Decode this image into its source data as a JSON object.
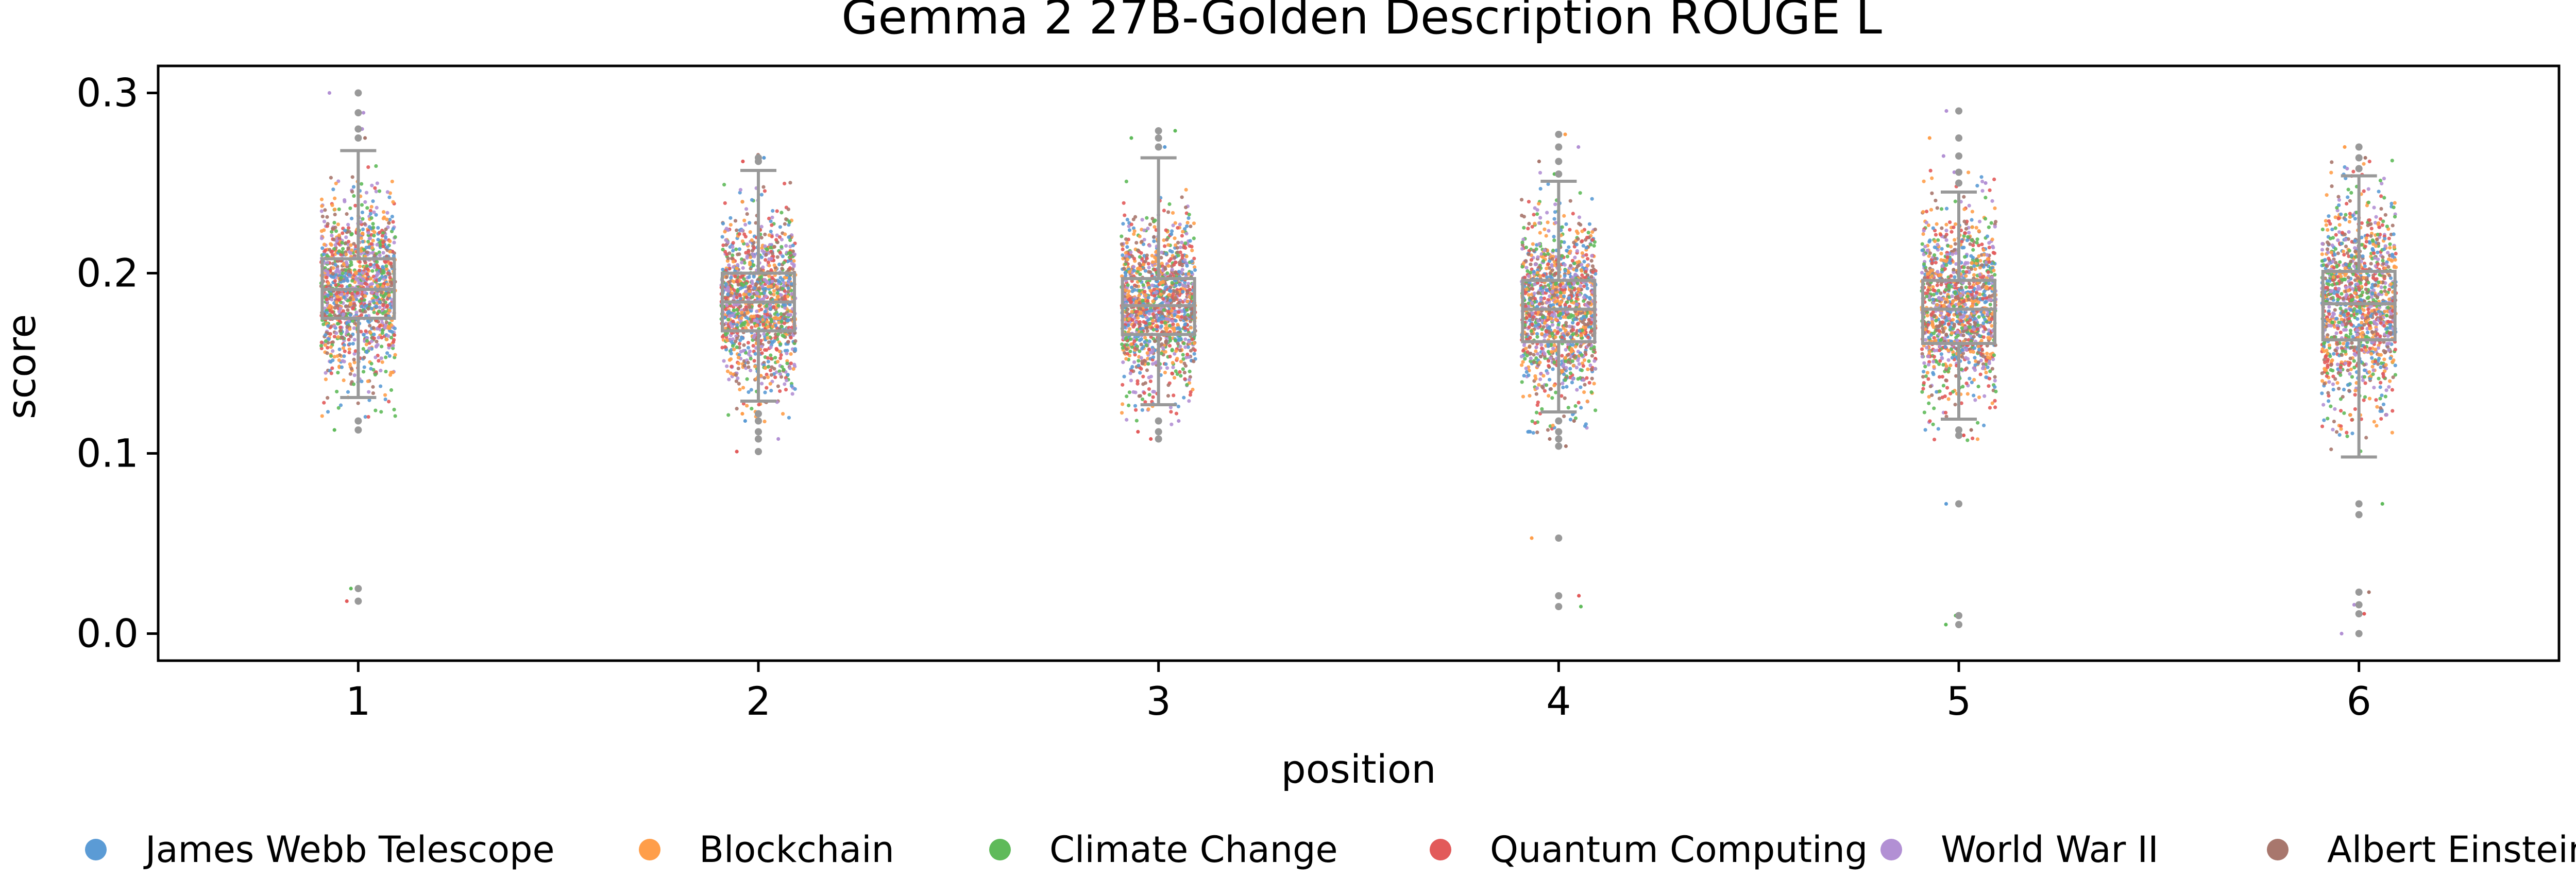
{
  "chart_data": {
    "type": "box",
    "title": "Gemma 2 27B-Golden Description ROUGE L",
    "xlabel": "position",
    "ylabel": "score",
    "categories": [
      "1",
      "2",
      "3",
      "4",
      "5",
      "6"
    ],
    "ylim": [
      -0.015,
      0.315
    ],
    "yticks": [
      "0.0",
      "0.1",
      "0.2",
      "0.3"
    ],
    "grid": false,
    "legend_position": "bottom",
    "overlay": "strip (jittered points colored by topic)",
    "boxes": [
      {
        "position": "1",
        "q1": 0.175,
        "median": 0.191,
        "q3": 0.208,
        "whisker_low": 0.131,
        "whisker_high": 0.268,
        "outliers": [
          0.113,
          0.118,
          0.275,
          0.28,
          0.289,
          0.3,
          0.025,
          0.018
        ]
      },
      {
        "position": "2",
        "q1": 0.168,
        "median": 0.184,
        "q3": 0.2,
        "whisker_low": 0.129,
        "whisker_high": 0.257,
        "outliers": [
          0.101,
          0.108,
          0.112,
          0.118,
          0.122,
          0.262,
          0.264
        ]
      },
      {
        "position": "3",
        "q1": 0.166,
        "median": 0.182,
        "q3": 0.197,
        "whisker_low": 0.127,
        "whisker_high": 0.264,
        "outliers": [
          0.108,
          0.112,
          0.118,
          0.27,
          0.275,
          0.279
        ]
      },
      {
        "position": "4",
        "q1": 0.162,
        "median": 0.18,
        "q3": 0.196,
        "whisker_low": 0.123,
        "whisker_high": 0.251,
        "outliers": [
          0.104,
          0.108,
          0.112,
          0.118,
          0.255,
          0.262,
          0.27,
          0.277,
          0.053,
          0.021,
          0.015
        ]
      },
      {
        "position": "5",
        "q1": 0.161,
        "median": 0.18,
        "q3": 0.196,
        "whisker_low": 0.119,
        "whisker_high": 0.245,
        "outliers": [
          0.11,
          0.113,
          0.25,
          0.256,
          0.265,
          0.275,
          0.29,
          0.072,
          0.01,
          0.005
        ]
      },
      {
        "position": "6",
        "q1": 0.163,
        "median": 0.183,
        "q3": 0.201,
        "whisker_low": 0.098,
        "whisker_high": 0.254,
        "outliers": [
          0.258,
          0.264,
          0.27,
          0.072,
          0.066,
          0.023,
          0.016,
          0.011,
          0.0
        ]
      }
    ],
    "series": [
      {
        "name": "James Webb Telescope",
        "color": "#5b9bd5"
      },
      {
        "name": "Blockchain",
        "color": "#ff9e4a"
      },
      {
        "name": "Climate Change",
        "color": "#5fba5a"
      },
      {
        "name": "Quantum Computing",
        "color": "#e25a5a"
      },
      {
        "name": "World War II",
        "color": "#b290d4"
      },
      {
        "name": "Albert Einstein",
        "color": "#a8776d"
      }
    ],
    "box_color": "#999999"
  }
}
